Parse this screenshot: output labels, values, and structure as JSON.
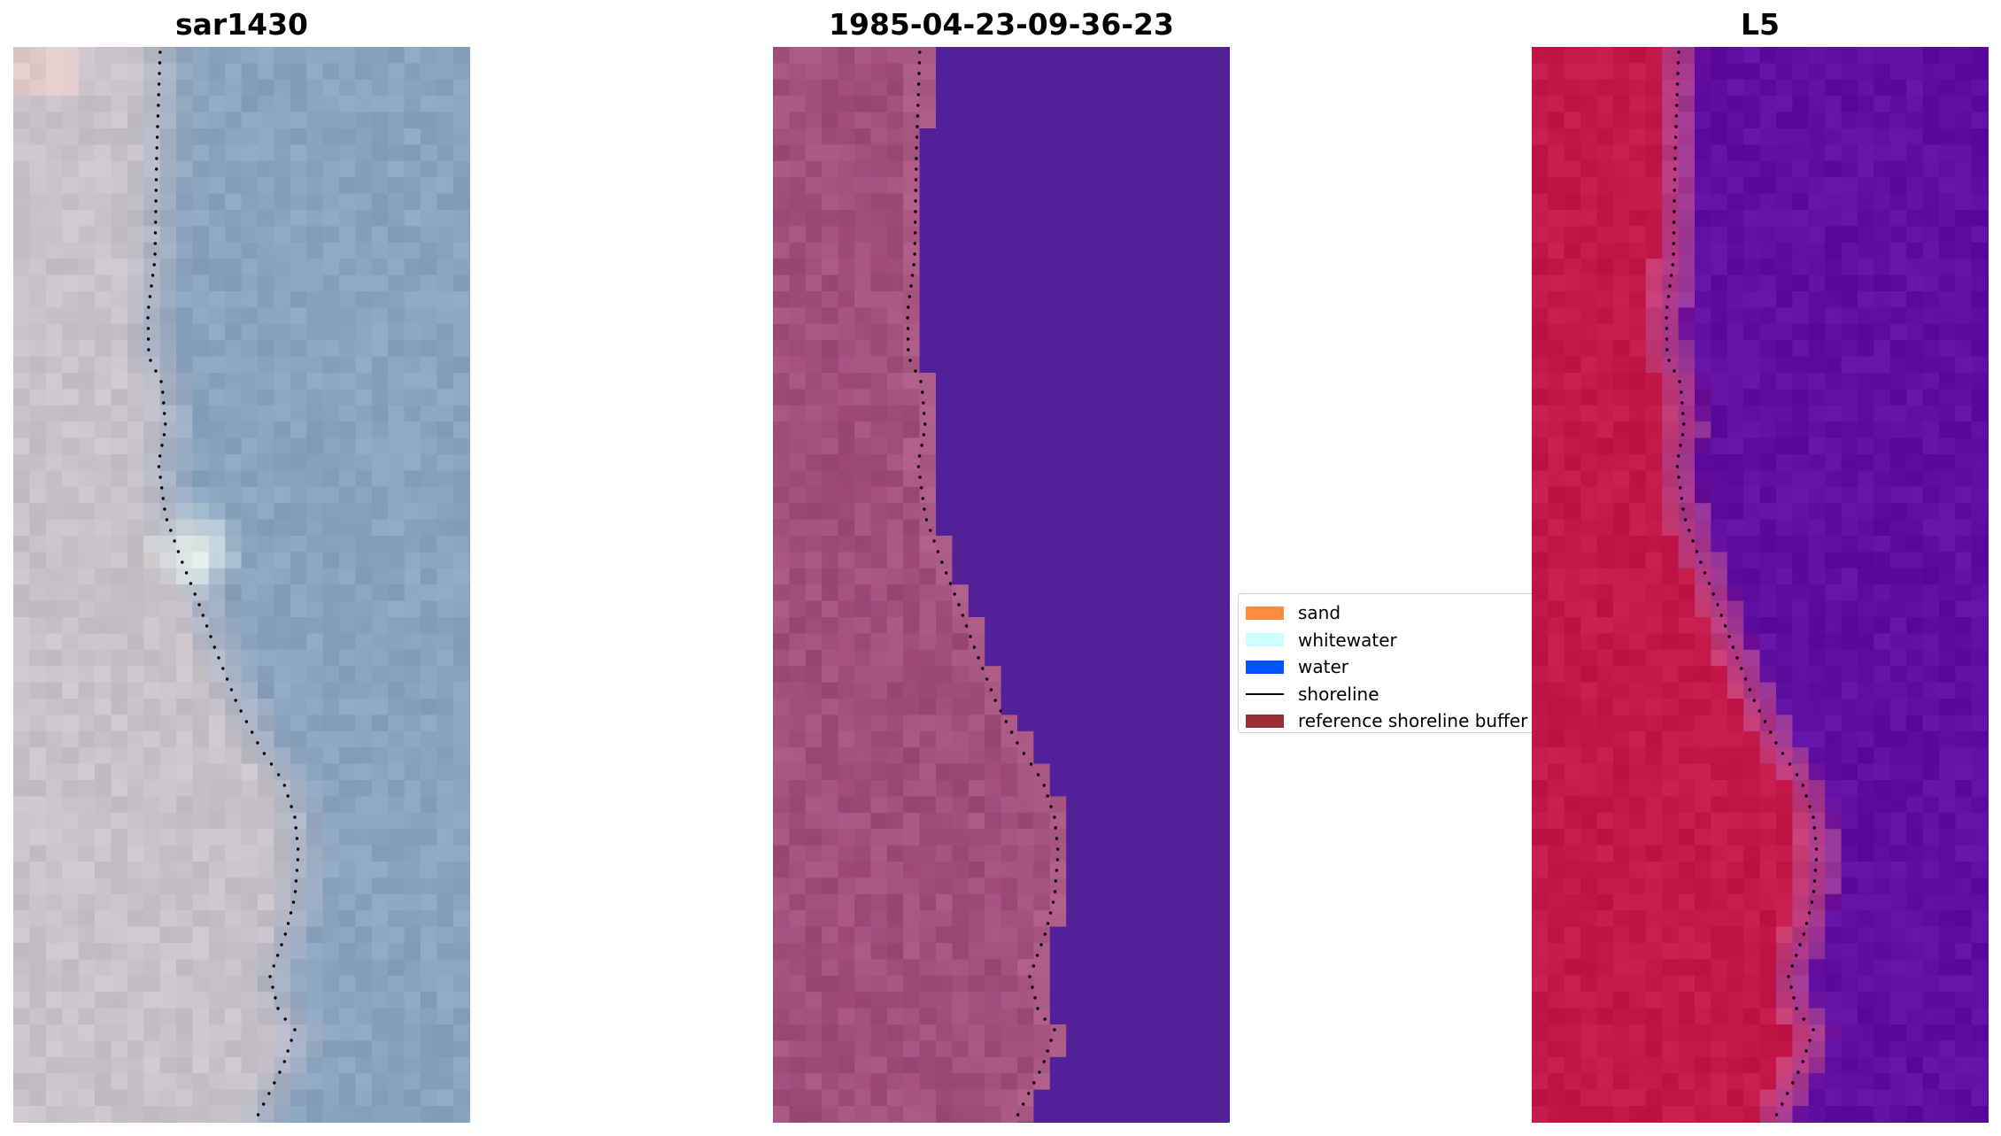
{
  "panels": [
    {
      "title": "sar1430"
    },
    {
      "title": "1985-04-23-09-36-23"
    },
    {
      "title": "L5"
    }
  ],
  "legend": {
    "items": [
      {
        "label": "sand",
        "color": "#ff8c3a"
      },
      {
        "label": "whitewater",
        "color": "#ccffff"
      },
      {
        "label": "water",
        "color": "#0055ff"
      },
      {
        "label": "shoreline",
        "color": "#000000"
      },
      {
        "label": "reference shoreline buffer",
        "color": "#9b2e34"
      }
    ]
  },
  "colors": {
    "rgb_water": "#8aa3bf",
    "rgb_land": "#c9c2c8",
    "classified_land": "#a34f7e",
    "classified_water": "#522098",
    "index_land": "#c4184a",
    "index_water": "#5f0ea2"
  }
}
